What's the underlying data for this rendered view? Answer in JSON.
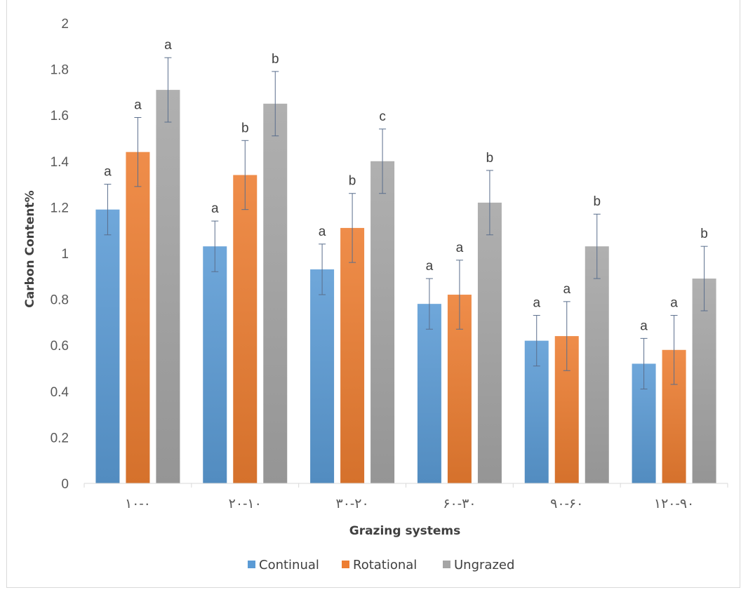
{
  "chart_data": {
    "type": "bar",
    "title": "",
    "xlabel": "Grazing systems",
    "ylabel": "Carbon Content%",
    "ylim": [
      0,
      2
    ],
    "yticks": [
      "0",
      "0.2",
      "0.4",
      "0.6",
      "0.8",
      "1",
      "1.2",
      "1.4",
      "1.6",
      "1.8",
      "2"
    ],
    "categories": [
      "۱۰-۰",
      "۲۰-۱۰",
      "۳۰-۲۰",
      "۶۰-۳۰",
      "۹۰-۶۰",
      "۱۲۰-۹۰"
    ],
    "series": [
      {
        "name": "Continual",
        "color": "#5b9bd5",
        "values": [
          1.19,
          1.03,
          0.93,
          0.78,
          0.62,
          0.52
        ],
        "errors": [
          0.11,
          0.11,
          0.11,
          0.11,
          0.11,
          0.11
        ],
        "letters": [
          "a",
          "a",
          "a",
          "a",
          "a",
          "a"
        ]
      },
      {
        "name": "Rotational",
        "color": "#ed7d31",
        "values": [
          1.44,
          1.34,
          1.11,
          0.82,
          0.64,
          0.58
        ],
        "errors": [
          0.15,
          0.15,
          0.15,
          0.15,
          0.15,
          0.15
        ],
        "letters": [
          "a",
          "b",
          "b",
          "a",
          "a",
          "a"
        ]
      },
      {
        "name": "Ungrazed",
        "color": "#a5a5a5",
        "values": [
          1.71,
          1.65,
          1.4,
          1.22,
          1.03,
          0.89
        ],
        "errors": [
          0.14,
          0.14,
          0.14,
          0.14,
          0.14,
          0.14
        ],
        "letters": [
          "a",
          "b",
          "c",
          "b",
          "b",
          "b"
        ]
      }
    ],
    "grid": false,
    "legend_position": "bottom",
    "error_bar_color": "#5a6e8c"
  }
}
